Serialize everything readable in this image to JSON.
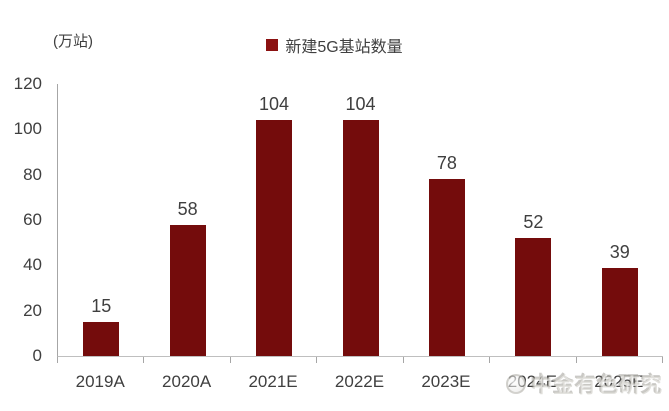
{
  "chart_data": {
    "type": "bar",
    "title": "",
    "unit_label": "(万站)",
    "legend_label": "新建5G基站数量",
    "legend_position": "top-center",
    "categories": [
      "2019A",
      "2020A",
      "2021E",
      "2022E",
      "2023E",
      "2024E",
      "2025E"
    ],
    "values": [
      15,
      58,
      104,
      104,
      78,
      52,
      39
    ],
    "xlabel": "",
    "ylabel": "",
    "ylim": [
      0,
      120
    ],
    "yticks": [
      0,
      20,
      40,
      60,
      80,
      100,
      120
    ],
    "grid": false,
    "colors": {
      "bar": "#740c0c",
      "legend_square": "#8b1111",
      "axis": "#a6a6a6",
      "text": "#3f3f3f"
    }
  },
  "watermark": {
    "text": "中金有色研究"
  }
}
